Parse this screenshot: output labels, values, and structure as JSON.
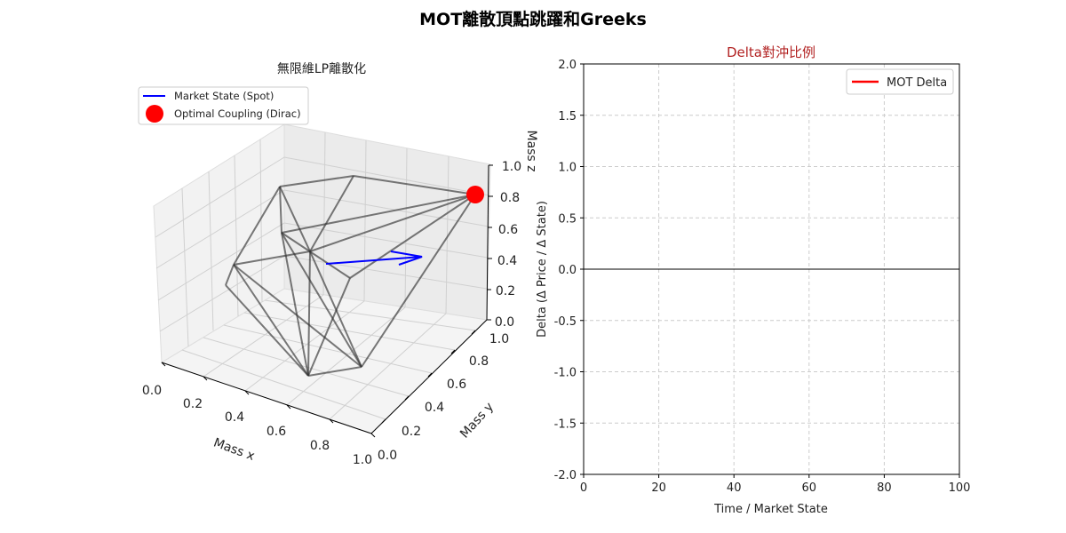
{
  "figure": {
    "title": "MOT離散頂點跳躍和Greeks"
  },
  "chart_data": [
    {
      "type": "3d-wireframe",
      "title": "無限維LP離散化",
      "xlabel": "Mass x",
      "ylabel": "Mass y",
      "zlabel": "Mass z",
      "xlim": [
        0,
        1
      ],
      "ylim": [
        0,
        1
      ],
      "zlim": [
        0,
        1
      ],
      "xticks": [
        "0.0",
        "0.2",
        "0.4",
        "0.6",
        "0.8",
        "1.0"
      ],
      "yticks": [
        "0.0",
        "0.2",
        "0.4",
        "0.6",
        "0.8",
        "1.0"
      ],
      "zticks": [
        "0.0",
        "0.2",
        "0.4",
        "0.6",
        "0.8",
        "1.0"
      ],
      "legend": {
        "placement": "upper-left",
        "entries": [
          {
            "label": "Market State (Spot)",
            "color": "#0000ff",
            "kind": "line"
          },
          {
            "label": "Optimal Coupling (Dirac)",
            "color": "#ff0000",
            "kind": "marker"
          }
        ]
      },
      "grid": true
    },
    {
      "type": "line",
      "title": "Delta對沖比例",
      "title_color": "#b22222",
      "xlabel": "Time / Market State",
      "ylabel": "Delta (Δ Price / Δ State)",
      "xlim": [
        0,
        100
      ],
      "ylim": [
        -2,
        2
      ],
      "xticks": [
        0,
        20,
        40,
        60,
        80,
        100
      ],
      "yticks": [
        2.0,
        1.5,
        1.0,
        0.5,
        0.0,
        -0.5,
        -1.0,
        -1.5,
        -2.0
      ],
      "ytick_labels": [
        "2.0",
        "1.5",
        "1.0",
        "0.5",
        "0.0",
        "-0.5",
        "-1.0",
        "-1.5",
        "-2.0"
      ],
      "hline": 0,
      "series": [
        {
          "name": "MOT Delta",
          "color": "#ff0000",
          "x": [],
          "y": []
        }
      ],
      "legend": {
        "placement": "top-right"
      },
      "grid": true
    }
  ]
}
